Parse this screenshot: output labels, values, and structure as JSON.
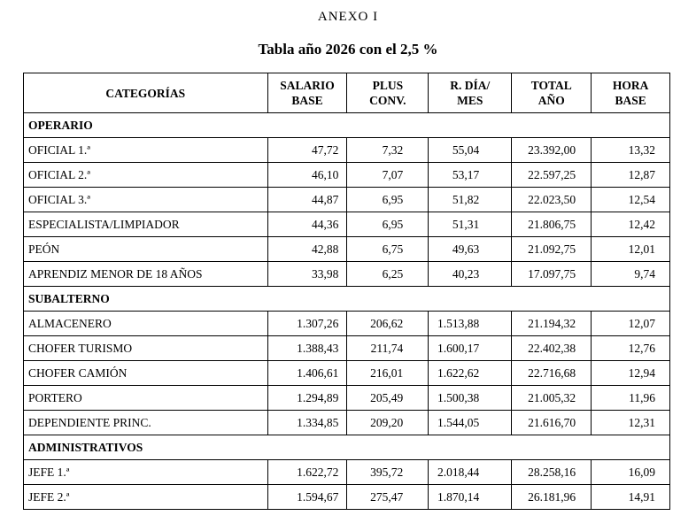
{
  "doc": {
    "annex": "ANEXO I",
    "title": "Tabla año 2026 con el 2,5 %"
  },
  "table": {
    "headers": [
      [
        "CATEGORÍAS"
      ],
      [
        "SALARIO",
        "BASE"
      ],
      [
        "PLUS",
        "CONV."
      ],
      [
        "R. DÍA/",
        "MES"
      ],
      [
        "TOTAL",
        "AÑO"
      ],
      [
        "HORA",
        "BASE"
      ]
    ],
    "sections": [
      {
        "name": "OPERARIO",
        "rows": [
          [
            "OFICIAL 1.ª",
            "47,72",
            "7,32",
            "55,04",
            "23.392,00",
            "13,32"
          ],
          [
            "OFICIAL 2.ª",
            "46,10",
            "7,07",
            "53,17",
            "22.597,25",
            "12,87"
          ],
          [
            "OFICIAL 3.ª",
            "44,87",
            "6,95",
            "51,82",
            "22.023,50",
            "12,54"
          ],
          [
            "ESPECIALISTA/LIMPIADOR",
            "44,36",
            "6,95",
            "51,31",
            "21.806,75",
            "12,42"
          ],
          [
            "PEÓN",
            "42,88",
            "6,75",
            "49,63",
            "21.092,75",
            "12,01"
          ],
          [
            "APRENDIZ MENOR DE 18 AÑOS",
            "33,98",
            "6,25",
            "40,23",
            "17.097,75",
            "9,74"
          ]
        ]
      },
      {
        "name": "SUBALTERNO",
        "rows": [
          [
            "ALMACENERO",
            "1.307,26",
            "206,62",
            "1.513,88",
            "21.194,32",
            "12,07"
          ],
          [
            "CHOFER TURISMO",
            "1.388,43",
            "211,74",
            "1.600,17",
            "22.402,38",
            "12,76"
          ],
          [
            "CHOFER CAMIÓN",
            "1.406,61",
            "216,01",
            "1.622,62",
            "22.716,68",
            "12,94"
          ],
          [
            "PORTERO",
            "1.294,89",
            "205,49",
            "1.500,38",
            "21.005,32",
            "11,96"
          ],
          [
            "DEPENDIENTE PRINC.",
            "1.334,85",
            "209,20",
            "1.544,05",
            "21.616,70",
            "12,31"
          ]
        ]
      },
      {
        "name": "ADMINISTRATIVOS",
        "rows": [
          [
            "JEFE 1.ª",
            "1.622,72",
            "395,72",
            "2.018,44",
            "28.258,16",
            "16,09"
          ],
          [
            "JEFE 2.ª",
            "1.594,67",
            "275,47",
            "1.870,14",
            "26.181,96",
            "14,91"
          ]
        ]
      }
    ]
  }
}
